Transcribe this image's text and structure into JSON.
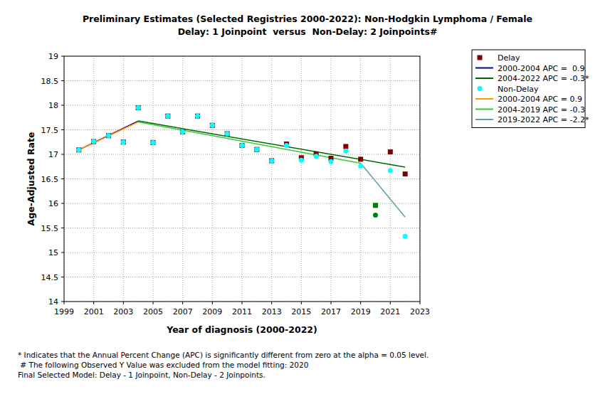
{
  "chart_data": {
    "type": "scatter",
    "title": "Preliminary Estimates (Selected Registries 2000-2022): Non-Hodgkin Lymphoma / Female",
    "subtitle": "Delay: 1 Joinpoint  versus  Non-Delay: 2 Joinpoints#",
    "x_label": "Year of diagnosis (2000-2022)",
    "y_label": "Age-Adjusted Rate",
    "notes": [
      "* Indicates that the Annual Percent Change (APC) is significantly different from zero at the alpha = 0.05 level.",
      " # The following Observed Y Value was excluded from the model fitting: 2020",
      "Final Selected Model: Delay - 1 Joinpoint, Non-Delay - 2 Joinpoints."
    ],
    "xlim": [
      1999,
      2023
    ],
    "xticks": [
      1999,
      2001,
      2003,
      2005,
      2007,
      2009,
      2011,
      2013,
      2015,
      2017,
      2019,
      2021,
      2023
    ],
    "ylim": [
      14,
      19
    ],
    "yticks": [
      14,
      14.5,
      15,
      15.5,
      16,
      16.5,
      17,
      17.5,
      18,
      18.5,
      19
    ],
    "grid": true,
    "legend": "outside-right",
    "series": [
      {
        "name": "Delay",
        "type": "scatter",
        "marker": "square",
        "color": "#800000",
        "x": [
          2000,
          2001,
          2002,
          2003,
          2004,
          2005,
          2006,
          2007,
          2008,
          2009,
          2010,
          2011,
          2012,
          2013,
          2014,
          2015,
          2016,
          2017,
          2018,
          2019,
          2020,
          2021,
          2022
        ],
        "values": [
          17.09,
          17.26,
          17.38,
          17.25,
          17.95,
          17.24,
          17.78,
          17.46,
          17.78,
          17.59,
          17.42,
          17.18,
          17.1,
          16.87,
          17.21,
          16.93,
          17.01,
          16.92,
          17.16,
          16.9,
          15.96,
          17.05,
          16.6
        ],
        "colors": [
          "#800000",
          "#800000",
          "#800000",
          "#800000",
          "#800000",
          "#800000",
          "#800000",
          "#800000",
          "#800000",
          "#800000",
          "#800000",
          "#800000",
          "#800000",
          "#800000",
          "#800000",
          "#800000",
          "#800000",
          "#800000",
          "#800000",
          "#800000",
          "#008000",
          "#800000",
          "#800000"
        ]
      },
      {
        "name": "2000-2004 APC =  0.9",
        "type": "line",
        "color": "#0000a0",
        "x": [
          2000,
          2004
        ],
        "values": [
          17.09,
          17.68
        ]
      },
      {
        "name": "2004-2022 APC = -0.3*",
        "type": "line",
        "color": "#006400",
        "x": [
          2004,
          2022
        ],
        "values": [
          17.68,
          16.74
        ]
      },
      {
        "name": "Non-Delay",
        "type": "scatter",
        "marker": "circle",
        "color": "#00ffff",
        "x": [
          2000,
          2001,
          2002,
          2003,
          2004,
          2005,
          2006,
          2007,
          2008,
          2009,
          2010,
          2011,
          2012,
          2013,
          2014,
          2015,
          2016,
          2017,
          2018,
          2019,
          2020,
          2021,
          2022
        ],
        "values": [
          17.09,
          17.26,
          17.38,
          17.25,
          17.95,
          17.24,
          17.78,
          17.46,
          17.78,
          17.59,
          17.42,
          17.18,
          17.1,
          16.87,
          17.18,
          16.88,
          16.96,
          16.85,
          17.07,
          16.76,
          15.76,
          16.67,
          15.33
        ],
        "colors": [
          "#00ffff",
          "#00ffff",
          "#00ffff",
          "#00ffff",
          "#00ffff",
          "#00ffff",
          "#00ffff",
          "#00ffff",
          "#00ffff",
          "#00ffff",
          "#00ffff",
          "#00ffff",
          "#00ffff",
          "#00ffff",
          "#00ffff",
          "#00ffff",
          "#00ffff",
          "#00ffff",
          "#00ffff",
          "#00ffff",
          "#008000",
          "#00ffff",
          "#00ffff"
        ]
      },
      {
        "name": "2000-2004 APC = 0.9",
        "type": "line",
        "color": "#ff9900",
        "x": [
          2000,
          2004
        ],
        "values": [
          17.09,
          17.66
        ]
      },
      {
        "name": "2004-2019 APC = -0.3",
        "type": "line",
        "color": "#33cc33",
        "x": [
          2004,
          2019
        ],
        "values": [
          17.66,
          16.82
        ]
      },
      {
        "name": "2019-2022 APC = -2.2*",
        "type": "line",
        "color": "#5f9ea0",
        "x": [
          2019,
          2022
        ],
        "values": [
          16.82,
          15.72
        ]
      }
    ]
  }
}
